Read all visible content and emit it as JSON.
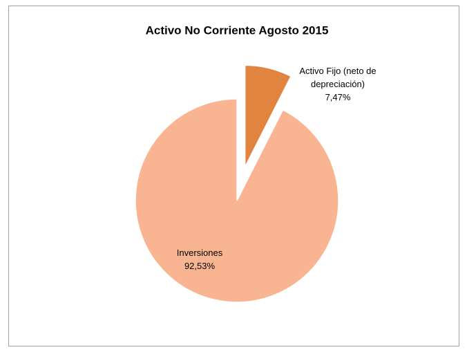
{
  "chart_data": {
    "type": "pie",
    "title": "Activo No Corriente Agosto  2015",
    "categories": [
      "Activo Fijo (neto de depreciación)",
      "Inversiones"
    ],
    "values": [
      7.47,
      92.53
    ],
    "value_labels": [
      "7,47%",
      "92,53%"
    ],
    "colors": [
      "#e0843f",
      "#f9b591"
    ]
  }
}
